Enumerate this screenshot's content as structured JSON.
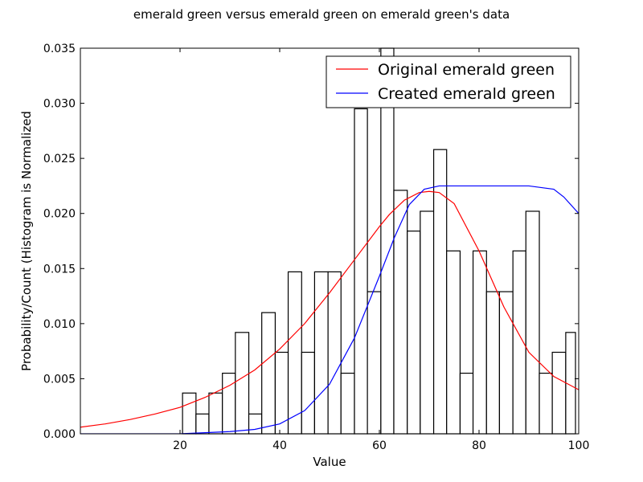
{
  "chart_data": {
    "type": "bar",
    "title": "emerald green versus emerald green on emerald green's data",
    "xlabel": "Value",
    "ylabel": "Probability/Count (Histogram is Normalized",
    "xlim": [
      0,
      100
    ],
    "ylim": [
      0,
      0.035
    ],
    "xticks": [
      20,
      40,
      60,
      80,
      100
    ],
    "yticks": [
      0.0,
      0.005,
      0.01,
      0.015,
      0.02,
      0.025,
      0.03,
      0.035
    ],
    "ytick_labels": [
      "0.000",
      "0.005",
      "0.010",
      "0.015",
      "0.020",
      "0.025",
      "0.030",
      "0.035"
    ],
    "grid": false,
    "legend_position": "top-right",
    "histogram": {
      "bin_edges": [
        20.5,
        23.2,
        25.8,
        28.5,
        31.1,
        33.8,
        36.4,
        39.1,
        41.7,
        44.4,
        47.0,
        49.7,
        52.3,
        55.0,
        57.6,
        60.3,
        62.9,
        65.6,
        68.2,
        70.9,
        73.5,
        76.2,
        78.8,
        81.5,
        84.1,
        86.8,
        89.4,
        92.1,
        94.7,
        97.4
      ],
      "values": [
        0.0037,
        0.0018,
        0.0037,
        0.0055,
        0.0092,
        0.0018,
        0.011,
        0.0074,
        0.0147,
        0.0074,
        0.0147,
        0.0147,
        0.0055,
        0.0295,
        0.0129,
        0.035,
        0.0221,
        0.0184,
        0.0202,
        0.0258,
        0.0166,
        0.0055,
        0.0166,
        0.0129,
        0.0129,
        0.0166,
        0.0202,
        0.0055,
        0.0074,
        0.0092
      ]
    },
    "series": [
      {
        "name": "Original emerald green",
        "color": "#ff0000",
        "x": [
          0,
          5,
          10,
          15,
          20,
          25,
          30,
          35,
          40,
          45,
          50,
          55,
          60,
          62,
          65,
          68,
          70,
          72,
          75,
          80,
          85,
          90,
          95,
          100
        ],
        "y": [
          0.0006,
          0.0009,
          0.0013,
          0.0018,
          0.0024,
          0.0033,
          0.0044,
          0.0058,
          0.0077,
          0.01,
          0.0128,
          0.0158,
          0.0188,
          0.0199,
          0.0212,
          0.0219,
          0.022,
          0.0219,
          0.0209,
          0.0166,
          0.0115,
          0.0074,
          0.0052,
          0.004
        ]
      },
      {
        "name": "Created emerald green",
        "color": "#0000ff",
        "x": [
          0,
          10,
          20,
          25,
          30,
          35,
          40,
          45,
          50,
          55,
          60,
          63,
          66,
          69,
          72,
          75,
          80,
          85,
          90,
          95,
          97,
          100
        ],
        "y": [
          0.0,
          0.0,
          0.0,
          0.0001,
          0.0002,
          0.0004,
          0.0009,
          0.0021,
          0.0045,
          0.0087,
          0.0143,
          0.0178,
          0.0208,
          0.0222,
          0.0225,
          0.0225,
          0.0225,
          0.0225,
          0.0225,
          0.0222,
          0.0215,
          0.02
        ]
      }
    ]
  }
}
